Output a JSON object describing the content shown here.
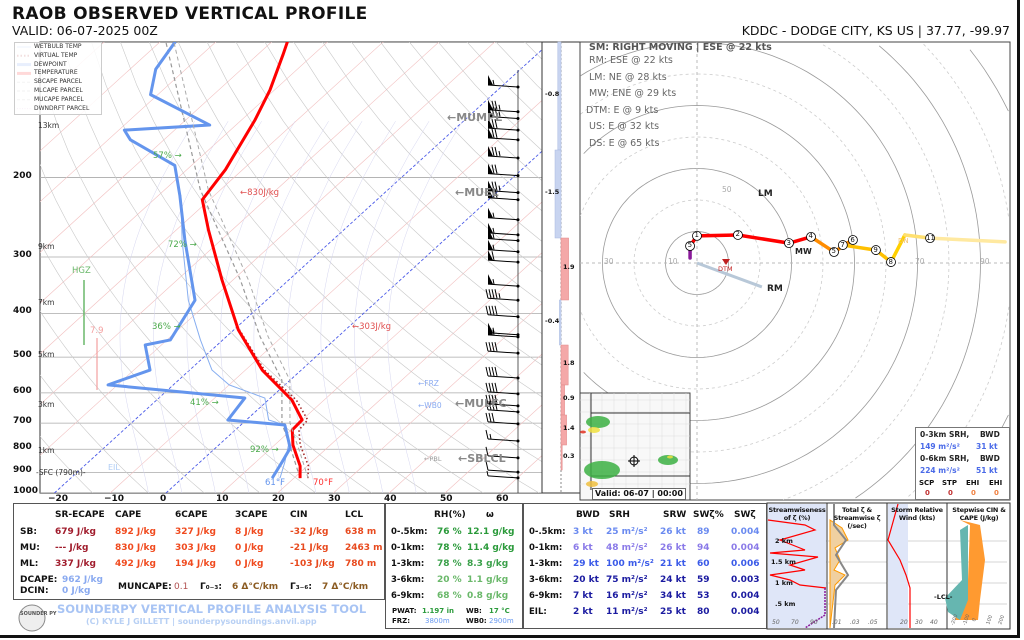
{
  "header": {
    "title": "RAOB OBSERVED VERTICAL PROFILE",
    "valid": "VALID: 06-07-2025 00Z",
    "station": "KDDC - DODGE CITY, KS US | 37.77, -99.97"
  },
  "legend": [
    "WETBULB TEMP",
    "VIRTUAL TEMP",
    "DEWPOINT",
    "TEMPERATURE",
    "SBCAPE PARCEL",
    "MLCAPE PARCEL",
    "MUCAPE PARCEL",
    "DWNDRFT PARCEL"
  ],
  "colors": {
    "temperature": "#ff0000",
    "dewpoint": "#6495ed",
    "wetbulb": "#87aef0",
    "virtual": "#a52a2a",
    "parcel": "#999999",
    "accent_blue": "#a8c4f4"
  },
  "chart_data": [
    {
      "type": "line",
      "title": "",
      "subtitle": "Skew-T log-P",
      "xlabel": "",
      "ylabel": "",
      "xlim": [
        -20,
        60
      ],
      "ylim": [
        1000,
        100
      ],
      "y_scale": "log",
      "grid": true,
      "legend_position": "top-left",
      "pressure_ticks": [
        "200",
        "300",
        "400",
        "500",
        "600",
        "700",
        "800",
        "900",
        "1000"
      ],
      "temp_ticks": [
        "−20",
        "−10",
        "0",
        "10",
        "20",
        "30",
        "40",
        "50",
        "60"
      ],
      "height_labels": [
        "13km",
        "9km",
        "7km",
        "5km",
        "3km",
        "1km",
        "-SFC (790m)-"
      ],
      "series": [
        {
          "name": "TEMPERATURE",
          "points": [
            [
              927,
              21.1
            ],
            [
              871,
              18.7
            ],
            [
              783,
              13.3
            ],
            [
              725,
              10.2
            ],
            [
              689,
              10.0
            ],
            [
              622,
              4.2
            ],
            [
              534,
              -7.0
            ],
            [
              435,
              -19.2
            ],
            [
              337,
              -32.0
            ],
            [
              261,
              -44.3
            ],
            [
              224,
              -51.3
            ],
            [
              192,
              -53.1
            ],
            [
              149,
              -57.6
            ],
            [
              128,
              -60.8
            ],
            [
              107,
              -65.4
            ],
            [
              100,
              -67.2
            ]
          ]
        },
        {
          "name": "DEWPOINT",
          "points": [
            [
              927,
              16.1
            ],
            [
              854,
              14.7
            ],
            [
              795,
              13.4
            ],
            [
              707,
              7.9
            ],
            [
              689,
              -3.3
            ],
            [
              616,
              -4.6
            ],
            [
              576,
              -31.7
            ],
            [
              534,
              -27.1
            ],
            [
              470,
              -32.9
            ],
            [
              458,
              -29.4
            ],
            [
              374,
              -32.8
            ],
            [
              275,
              -46.5
            ],
            [
              219,
              -56.2
            ],
            [
              188,
              -63
            ],
            [
              165,
              -76
            ],
            [
              157,
              -79
            ],
            [
              153,
              -64.7
            ],
            [
              131,
              -81.3
            ],
            [
              115,
              -85.4
            ],
            [
              100,
              -87.3
            ]
          ]
        },
        {
          "name": "WETBULB TEMP",
          "points": [
            [
              927,
              17.5
            ],
            [
              854,
              15.2
            ],
            [
              783,
              12.5
            ],
            [
              707,
              8
            ],
            [
              689,
              4
            ],
            [
              616,
              -1
            ],
            [
              576,
              -10
            ],
            [
              534,
              -16
            ],
            [
              458,
              -24
            ],
            [
              374,
              -34
            ],
            [
              275,
              -47
            ],
            [
              219,
              -56
            ]
          ]
        },
        {
          "name": "VIRTUAL TEMP",
          "points": [
            [
              927,
              22.5
            ],
            [
              871,
              20.2
            ],
            [
              783,
              14.6
            ],
            [
              725,
              11.4
            ],
            [
              689,
              11.0
            ],
            [
              622,
              5.0
            ],
            [
              534,
              -6.6
            ],
            [
              435,
              -19.0
            ]
          ]
        },
        {
          "name": "SBCAPE PARCEL",
          "points": [
            [
              927,
              21.1
            ],
            [
              820,
              15
            ],
            [
              700,
              7
            ],
            [
              562,
              -1.5
            ],
            [
              450,
              -14
            ],
            [
              337,
              -28.7
            ],
            [
              213,
              -53.6
            ],
            [
              100,
              -89
            ]
          ]
        }
      ],
      "wind_barbs": [
        [
          126,
          55
        ],
        [
          143,
          75
        ],
        [
          148,
          75
        ],
        [
          157,
          70
        ],
        [
          165,
          70
        ],
        [
          181,
          75
        ],
        [
          198,
          70
        ],
        [
          216,
          75
        ],
        [
          224,
          70
        ],
        [
          248,
          55
        ],
        [
          268,
          55
        ],
        [
          276,
          55
        ],
        [
          292,
          55
        ],
        [
          308,
          60
        ],
        [
          348,
          55
        ],
        [
          374,
          45
        ],
        [
          407,
          40
        ],
        [
          446,
          55
        ],
        [
          451,
          55
        ],
        [
          490,
          40
        ],
        [
          556,
          40
        ],
        [
          603,
          40
        ],
        [
          641,
          40
        ],
        [
          661,
          40
        ],
        [
          703,
          30
        ],
        [
          767,
          15
        ],
        [
          836,
          10
        ],
        [
          899,
          10
        ],
        [
          926,
          5
        ]
      ],
      "annotations": {
        "mumpl": "←MUMPL",
        "muel": "←MUEL",
        "mulfc": "←MULFC",
        "sblcl": "←SBLCL",
        "pbl": "←PBL",
        "frz": "←FRZ",
        "wb0": "←WB0",
        "cape_upper": "←830J/kg",
        "cape_lower": "←303J/kg",
        "hgz": "HGZ",
        "hgz_val": "7.9",
        "rh1": "57% →",
        "rh2": "72% →",
        "rh3": "36% →",
        "rh4": "41% →",
        "rh5": "92% →",
        "sfc_td": "61°F",
        "sfc_t": "70°F",
        "eil": "EIL"
      },
      "streamwise_bars": [
        {
          "label": "-0.8",
          "value": -0.8
        },
        {
          "label": "-1.5",
          "value": -1.5
        },
        {
          "label": "1.9",
          "value": 1.9
        },
        {
          "label": "-0.4",
          "value": -0.4
        },
        {
          "label": "1.8",
          "value": 1.8
        },
        {
          "label": "0.9",
          "value": 0.9
        },
        {
          "label": "1.4",
          "value": 1.4
        },
        {
          "label": "0.3",
          "value": 0.3
        }
      ]
    },
    {
      "type": "line",
      "subtitle": "Hodograph",
      "ring_labels": [
        "10",
        "30",
        "50",
        "70",
        "90"
      ],
      "points": [
        [
          -2.2,
          1.6
        ],
        [
          -2.2,
          5.4
        ],
        [
          0,
          8.6
        ],
        [
          13,
          8.9
        ],
        [
          29.2,
          6.3
        ],
        [
          36.2,
          8.3
        ],
        [
          43.5,
          3.5
        ],
        [
          49.5,
          7.3
        ],
        [
          46.3,
          5.7
        ],
        [
          56.8,
          4.1
        ],
        [
          61.6,
          0.3
        ],
        [
          66,
          8.9
        ],
        [
          74,
          7.9
        ],
        [
          97.8,
          6.7
        ]
      ],
      "height_markers": [
        "",
        "5",
        "1",
        "2",
        "3",
        "4",
        "5",
        "6",
        "7",
        "9",
        "8",
        "",
        "11",
        ""
      ],
      "storm_motion": {
        "RM": [
          20.6,
          -7.6
        ],
        "LM": [
          21,
          21.6
        ],
        "MW": [
          32.7,
          6.3
        ],
        "DTM": [
          9,
          0
        ],
        "DN": [
          65,
          6
        ]
      },
      "labels": {
        "rm": "RM",
        "lm": "LM",
        "mw": "MW",
        "dtm": "DTM",
        "dn": "DN"
      }
    }
  ],
  "hodo_info": {
    "sm": "SM: RIGHT MOVING | ESE @ 22 kts",
    "rm": "RM: ESE @ 22 kts",
    "lm": "LM: NE @ 28 kts",
    "mw": "MW: ENE @ 29 kts",
    "dtm": "DTM: E @ 9 kts",
    "us": "US: E @ 32 kts",
    "ds": "DS: E @ 65 kts"
  },
  "srh_box": {
    "h1": "0-3km SRH,",
    "b1": "BWD",
    "srh03": "149 m²/s²",
    "bwd03": "31 kt",
    "h2": "0-6km SRH,",
    "b2": "BWD",
    "srh06": "224 m²/s²",
    "bwd06": "51 kt",
    "scp_l": "SCP",
    "stp_l": "STP",
    "ehi1_l": "EHI",
    "ehi3_l": "EHI",
    "scp": "0",
    "stp": "0",
    "ehi1": "0",
    "ehi3": "0"
  },
  "radar": {
    "valid": "Valid: 06-07 | 00:00"
  },
  "thermo": {
    "headers": [
      "SR-ECAPE",
      "CAPE",
      "6CAPE",
      "3CAPE",
      "CIN",
      "LCL"
    ],
    "rows": [
      {
        "label": "SB:",
        "values": [
          "679 J/kg",
          "892 J/kg",
          "327 J/kg",
          "8 J/kg",
          "-32 J/kg",
          "638 m"
        ]
      },
      {
        "label": "MU:",
        "values": [
          "--- J/kg",
          "830 J/kg",
          "303 J/kg",
          "0 J/kg",
          "-21 J/kg",
          "2463 m"
        ]
      },
      {
        "label": "ML:",
        "values": [
          "337 J/kg",
          "492 J/kg",
          "194 J/kg",
          "0 J/kg",
          "-103 J/kg",
          "780 m"
        ]
      }
    ],
    "dcape_l": "DCAPE:",
    "dcape": "962 J/kg",
    "dcin_l": "DCIN:",
    "dcin": "0 J/kg",
    "muncape_l": "MUNCAPE:",
    "muncape": "0.1",
    "g03_l": "Γ₀₋₃:",
    "g03": "6 Δ°C/km",
    "g36_l": "Γ₃₋₆:",
    "g36": "7 Δ°C/km"
  },
  "moisture": {
    "headers": [
      "RH(%)",
      "ω"
    ],
    "rows": [
      {
        "label": "0-.5km:",
        "rh": "76 %",
        "w": "12.1 g/kg"
      },
      {
        "label": "0-1km:",
        "rh": "78 %",
        "w": "11.4 g/kg"
      },
      {
        "label": "1-3km:",
        "rh": "78 %",
        "w": "8.3 g/kg"
      },
      {
        "label": "3-6km:",
        "rh": "20 %",
        "w": "1.1 g/kg"
      },
      {
        "label": "6-9km:",
        "rh": "68 %",
        "w": "0.8 g/kg"
      }
    ],
    "pwat_l": "PWAT:",
    "pwat": "1.197 in",
    "wb_l": "WB:",
    "wb": "17 °C",
    "frz_l": "FRZ:",
    "frz": "3800m",
    "wb0_l": "WB0:",
    "wb0": "2900m"
  },
  "kinematics": {
    "headers": [
      "BWD",
      "SRH",
      "SRW",
      "SWζ%",
      "SWζ"
    ],
    "rows": [
      {
        "label": "0-.5km:",
        "values": [
          "3 kt",
          "25 m²/s²",
          "26 kt",
          "89",
          "0.004"
        ]
      },
      {
        "label": "0-1km:",
        "values": [
          "6 kt",
          "48 m²/s²",
          "26 kt",
          "94",
          "0.004"
        ]
      },
      {
        "label": "1-3km:",
        "values": [
          "29 kt",
          "100 m²/s²",
          "21 kt",
          "60",
          "0.006"
        ]
      },
      {
        "label": "3-6km:",
        "values": [
          "20 kt",
          "75 m²/s²",
          "24 kt",
          "59",
          "0.003"
        ]
      },
      {
        "label": "6-9km:",
        "values": [
          "7 kt",
          "16 m²/s²",
          "34 kt",
          "53",
          "0.004"
        ]
      },
      {
        "label": "EIL:",
        "values": [
          "2 kt",
          "11 m²/s²",
          "25 kt",
          "80",
          "0.004"
        ]
      }
    ]
  },
  "panels": {
    "p1": "Streamwiseness of ζ (%)",
    "p2": "Total ζ & Streamwise ζ (/sec)",
    "p3": "Storm Relative Wind (kts)",
    "p4": "Stepwise CIN & CAPE (J/kg)",
    "heights": [
      "2 km",
      "1.5 km",
      "1 km",
      ".5 km"
    ],
    "lcl": "-LCL-",
    "p1_ticks": [
      "50",
      "70",
      "90"
    ],
    "p2_ticks": [
      ".01",
      ".03",
      ".05"
    ],
    "p3_ticks": [
      "20",
      "30",
      "40"
    ],
    "p4_ticks": [
      "-200",
      "-100",
      "0",
      "100",
      "200"
    ]
  },
  "footer": {
    "title": "SOUNDERPY VERTICAL PROFILE ANALYSIS TOOL",
    "credit": "(C) KYLE J GILLETT | sounderpysoundings.anvil.app",
    "logo": "SOUNDER PY"
  }
}
